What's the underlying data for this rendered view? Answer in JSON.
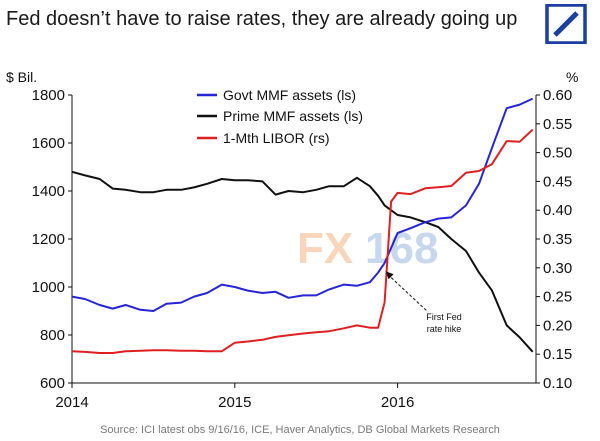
{
  "header": {
    "title": "Fed doesn’t have to raise rates, they are already going up",
    "logo_icon": "deutsche-bank-logo",
    "logo_color": "#1a3f9c"
  },
  "watermark": {
    "part1": "FX",
    "part2": "168",
    "color1": "#f08a3c",
    "color2": "#5f8fd0"
  },
  "source": "Source: ICI latest obs 9/16/16, ICE, Haver Analytics, DB Global Markets Research",
  "chart_data": {
    "type": "line",
    "title": "Fed doesn’t have to raise rates, they are already going up",
    "x_ticks": [
      "2014",
      "2015",
      "2016"
    ],
    "left_axis": {
      "unit": "$ Bil.",
      "ylim": [
        600,
        1800
      ],
      "ticks": [
        "600",
        "800",
        "1000",
        "1200",
        "1400",
        "1600",
        "1800"
      ]
    },
    "right_axis": {
      "unit": "%",
      "ylim": [
        0.1,
        0.6
      ],
      "ticks": [
        "0.10",
        "0.15",
        "0.20",
        "0.25",
        "0.30",
        "0.35",
        "0.40",
        "0.45",
        "0.50",
        "0.55",
        "0.60"
      ]
    },
    "grid": false,
    "legend_position": "top-center",
    "series": [
      {
        "name": "Govt MMF assets (ls)",
        "axis": "left",
        "color": "#2626d9",
        "x": [
          2014.0,
          2014.08,
          2014.17,
          2014.25,
          2014.33,
          2014.42,
          2014.5,
          2014.58,
          2014.67,
          2014.75,
          2014.83,
          2014.92,
          2015.0,
          2015.08,
          2015.17,
          2015.25,
          2015.33,
          2015.42,
          2015.5,
          2015.58,
          2015.67,
          2015.75,
          2015.83,
          2015.88,
          2015.92,
          2016.0,
          2016.08,
          2016.17,
          2016.25,
          2016.33,
          2016.42,
          2016.5,
          2016.58,
          2016.67,
          2016.75,
          2016.83
        ],
        "y": [
          960,
          950,
          925,
          910,
          925,
          905,
          900,
          930,
          935,
          960,
          975,
          1010,
          1000,
          985,
          975,
          980,
          955,
          965,
          965,
          990,
          1010,
          1005,
          1020,
          1060,
          1100,
          1225,
          1245,
          1270,
          1285,
          1290,
          1340,
          1430,
          1580,
          1745,
          1760,
          1785
        ]
      },
      {
        "name": "Prime MMF assets (ls)",
        "axis": "left",
        "color": "#111111",
        "x": [
          2014.0,
          2014.08,
          2014.17,
          2014.25,
          2014.33,
          2014.42,
          2014.5,
          2014.58,
          2014.67,
          2014.75,
          2014.83,
          2014.92,
          2015.0,
          2015.08,
          2015.17,
          2015.25,
          2015.33,
          2015.42,
          2015.5,
          2015.58,
          2015.67,
          2015.75,
          2015.83,
          2015.88,
          2015.92,
          2016.0,
          2016.08,
          2016.17,
          2016.25,
          2016.33,
          2016.42,
          2016.5,
          2016.58,
          2016.67,
          2016.75,
          2016.83
        ],
        "y": [
          1480,
          1465,
          1450,
          1410,
          1405,
          1395,
          1395,
          1405,
          1405,
          1415,
          1430,
          1450,
          1445,
          1445,
          1440,
          1385,
          1400,
          1395,
          1405,
          1420,
          1420,
          1455,
          1420,
          1380,
          1340,
          1300,
          1290,
          1270,
          1250,
          1200,
          1150,
          1060,
          985,
          840,
          790,
          730
        ]
      },
      {
        "name": "1-Mth LIBOR (rs)",
        "axis": "right",
        "color": "#e02020",
        "x": [
          2014.0,
          2014.08,
          2014.17,
          2014.25,
          2014.33,
          2014.42,
          2014.5,
          2014.58,
          2014.67,
          2014.75,
          2014.83,
          2014.92,
          2015.0,
          2015.08,
          2015.17,
          2015.25,
          2015.33,
          2015.42,
          2015.5,
          2015.58,
          2015.67,
          2015.75,
          2015.83,
          2015.88,
          2015.92,
          2015.96,
          2016.0,
          2016.08,
          2016.17,
          2016.25,
          2016.33,
          2016.42,
          2016.5,
          2016.58,
          2016.67,
          2016.75,
          2016.83
        ],
        "y": [
          0.155,
          0.154,
          0.152,
          0.152,
          0.155,
          0.156,
          0.157,
          0.157,
          0.156,
          0.156,
          0.155,
          0.155,
          0.17,
          0.172,
          0.175,
          0.18,
          0.183,
          0.186,
          0.188,
          0.19,
          0.195,
          0.2,
          0.196,
          0.196,
          0.24,
          0.415,
          0.43,
          0.428,
          0.438,
          0.44,
          0.442,
          0.465,
          0.468,
          0.48,
          0.52,
          0.519,
          0.54
        ]
      }
    ],
    "annotation": {
      "lines": [
        "First Fed",
        "rate hike"
      ],
      "x": 2015.92,
      "y_left": 1095
    }
  }
}
